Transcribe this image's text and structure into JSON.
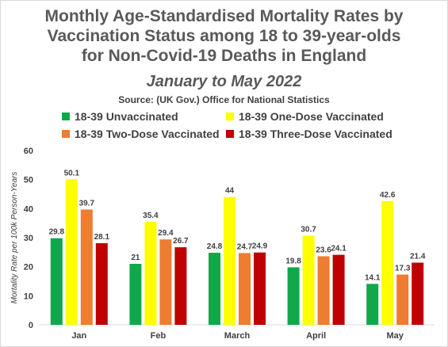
{
  "colors": {
    "unvaccinated": "#11a84a",
    "one_dose": "#ffff00",
    "two_dose": "#ed7d31",
    "three_dose": "#c00000"
  },
  "chart_data": {
    "type": "bar",
    "title_lines": [
      "Monthly Age-Standardised Mortality Rates by",
      "Vaccination Status among 18 to 39-year-olds",
      "for Non-Covid-19 Deaths in England"
    ],
    "subtitle": "January to May 2022",
    "source": "Source: (UK Gov.) Office for National Statistics",
    "ylabel": "Mortality Rate per 100k Person-Years",
    "xlabel": "",
    "ylim": [
      0,
      60
    ],
    "yticks": [
      0,
      10,
      20,
      30,
      40,
      50,
      60
    ],
    "categories": [
      "Jan",
      "Feb",
      "March",
      "April",
      "May"
    ],
    "legend_placement": "top",
    "grid": false,
    "series": [
      {
        "name": "18-39 Unvaccinated",
        "color": "#11a84a",
        "values": [
          29.8,
          21,
          24.8,
          19.8,
          14.1
        ]
      },
      {
        "name": "18-39 One-Dose Vaccinated",
        "color": "#ffff00",
        "values": [
          50.1,
          35.4,
          44,
          30.7,
          42.6
        ]
      },
      {
        "name": "18-39 Two-Dose Vaccinated",
        "color": "#ed7d31",
        "values": [
          39.7,
          29.4,
          24.7,
          23.6,
          17.3
        ]
      },
      {
        "name": "18-39 Three-Dose Vaccinated",
        "color": "#c00000",
        "values": [
          28.1,
          26.7,
          24.9,
          24.1,
          21.4
        ]
      }
    ]
  }
}
